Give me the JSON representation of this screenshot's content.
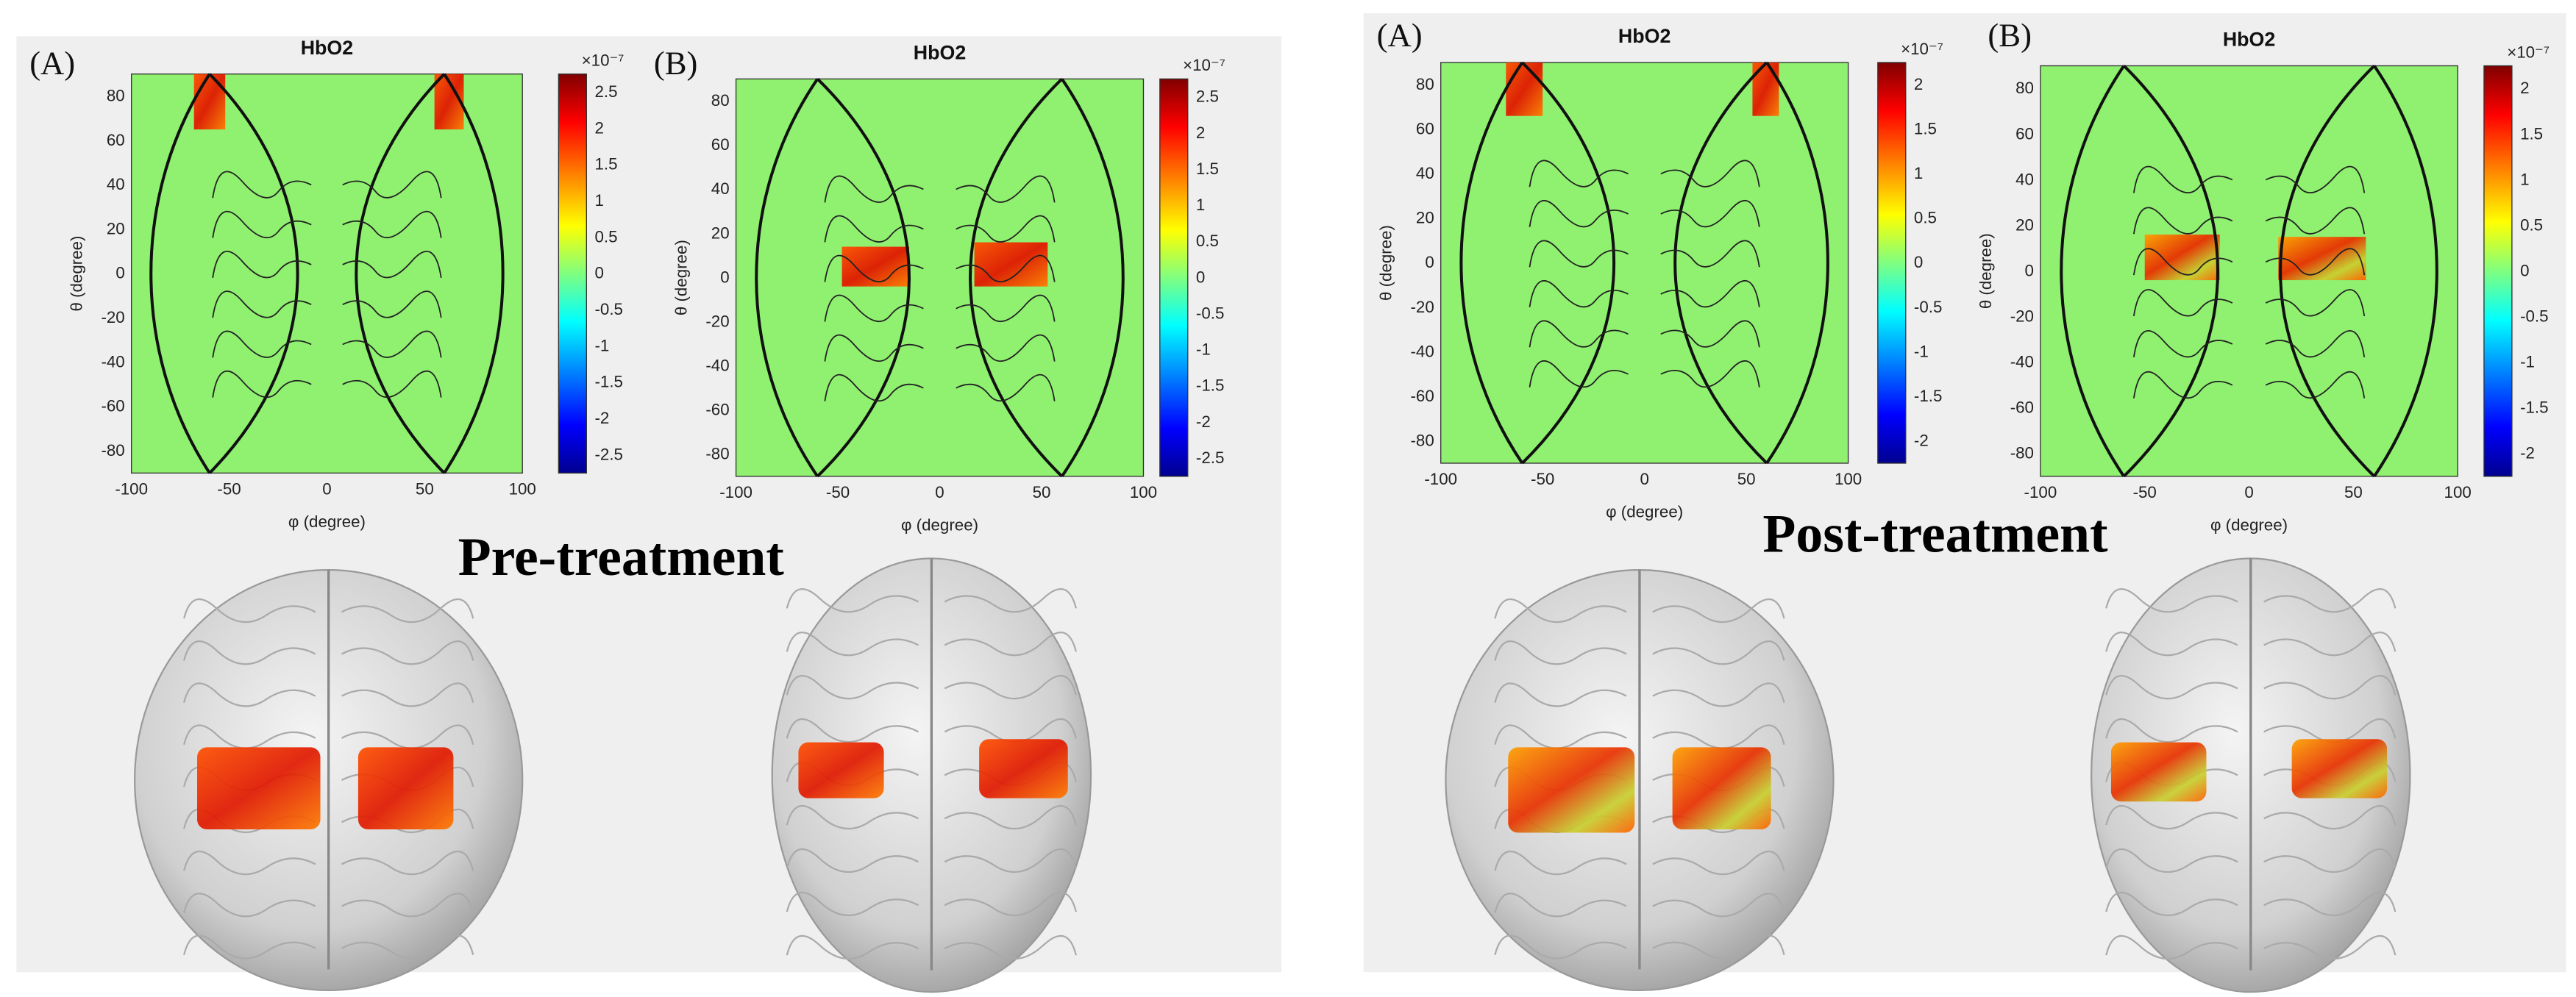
{
  "panels": [
    {
      "caption": "Pre-treatment",
      "maps": [
        {
          "label": "(A)",
          "title": "HbO2",
          "x_label": "φ (degree)",
          "y_label": "θ (degree)",
          "xticks": [
            -100,
            -50,
            0,
            50,
            100
          ],
          "yticks": [
            80,
            60,
            40,
            20,
            0,
            -20,
            -40,
            -60,
            -80
          ],
          "colorbar_exponent": "×10⁻⁷",
          "colorbar_ticks": [
            2.5,
            2,
            1.5,
            1,
            0.5,
            0,
            -0.5,
            -1,
            -1.5,
            -2,
            -2.5
          ]
        },
        {
          "label": "(B)",
          "title": "HbO2",
          "x_label": "φ (degree)",
          "y_label": "θ (degree)",
          "xticks": [
            -100,
            -50,
            0,
            50,
            100
          ],
          "yticks": [
            80,
            60,
            40,
            20,
            0,
            -20,
            -40,
            -60,
            -80
          ],
          "colorbar_exponent": "×10⁻⁷",
          "colorbar_ticks": [
            2.5,
            2,
            1.5,
            1,
            0.5,
            0,
            -0.5,
            -1,
            -1.5,
            -2,
            -2.5
          ]
        }
      ]
    },
    {
      "caption": "Post-treatment",
      "maps": [
        {
          "label": "(A)",
          "title": "HbO2",
          "x_label": "φ (degree)",
          "y_label": "θ (degree)",
          "xticks": [
            -100,
            -50,
            0,
            50,
            100
          ],
          "yticks": [
            80,
            60,
            40,
            20,
            0,
            -20,
            -40,
            -60,
            -80
          ],
          "colorbar_exponent": "×10⁻⁷",
          "colorbar_ticks": [
            2,
            1.5,
            1,
            0.5,
            0,
            -0.5,
            -1,
            -1.5,
            -2
          ]
        },
        {
          "label": "(B)",
          "title": "HbO2",
          "x_label": "φ (degree)",
          "y_label": "θ (degree)",
          "xticks": [
            -100,
            -50,
            0,
            50,
            100
          ],
          "yticks": [
            80,
            60,
            40,
            20,
            0,
            -20,
            -40,
            -60,
            -80
          ],
          "colorbar_exponent": "×10⁻⁷",
          "colorbar_ticks": [
            2,
            1.5,
            1,
            0.5,
            0,
            -0.5,
            -1,
            -1.5,
            -2
          ]
        }
      ]
    }
  ]
}
